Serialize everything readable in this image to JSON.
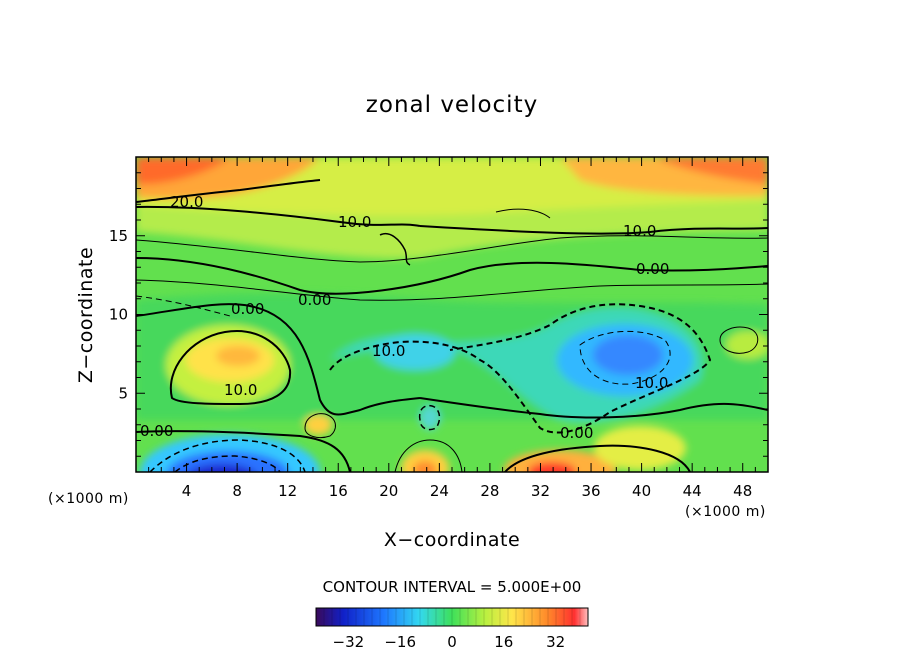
{
  "chart_data": {
    "type": "heatmap",
    "title": "zonal velocity",
    "xlabel": "X−coordinate",
    "ylabel": "Z−coordinate",
    "x_unit_left": "(×1000 m)",
    "x_unit_right": "(×1000 m)",
    "xlim": [
      0,
      50
    ],
    "ylim": [
      0,
      20
    ],
    "x_ticks": [
      4,
      8,
      12,
      16,
      20,
      24,
      28,
      32,
      36,
      40,
      44,
      48
    ],
    "y_ticks": [
      5,
      10,
      15
    ],
    "contour_interval_text": "CONTOUR INTERVAL = 5.000E+00",
    "colorbar": {
      "range": [
        -42,
        42
      ],
      "ticks": [
        "−32",
        "−16",
        "0",
        "16",
        "32"
      ],
      "tick_values": [
        -32,
        -16,
        0,
        16,
        32
      ]
    },
    "contour_labels": [
      "20.0",
      "10.0",
      "10.0",
      "0.00",
      "0.00",
      "0.00",
      "0.00",
      "10.0",
      "10.0",
      "10.0",
      "0.00",
      "0.00"
    ],
    "features": [
      {
        "x": 2,
        "z": 19,
        "u": 30
      },
      {
        "x": 48,
        "z": 19,
        "u": 30
      },
      {
        "x": 33,
        "z": 0.5,
        "u": 38
      },
      {
        "x": 23,
        "z": 0.6,
        "u": 24
      },
      {
        "x": 39,
        "z": 2,
        "u": 22
      },
      {
        "x": 8,
        "z": 0.3,
        "u": -38
      },
      {
        "x": 10,
        "z": 7.5,
        "u": 24
      },
      {
        "x": 39,
        "z": 7.5,
        "u": -15
      },
      {
        "x": 22,
        "z": 7,
        "u": -10
      },
      {
        "x": 15,
        "z": 3.3,
        "u": 18
      },
      {
        "x": 23,
        "z": 3.5,
        "u": -8
      }
    ]
  }
}
